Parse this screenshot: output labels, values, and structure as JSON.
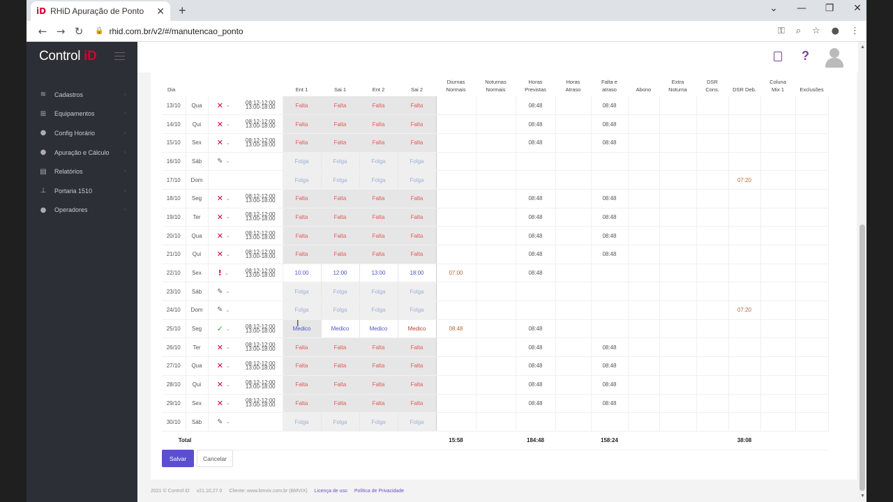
{
  "browser": {
    "tab_title": "RHiD Apuração de Ponto",
    "tab_favicon": "iD",
    "tab_close": "✕",
    "new_tab": "+",
    "url": "rhid.com.br/v2/#/manutencao_ponto",
    "window_controls": [
      "⌄",
      "—",
      "❐",
      "✕"
    ],
    "nav": {
      "back": "←",
      "forward": "→",
      "reload": "↻"
    },
    "address_icons": [
      "⚿",
      "⌕",
      "☆",
      "●",
      "⋮"
    ]
  },
  "sidebar": {
    "brand_text": "Control",
    "brand_id": "iD",
    "items": [
      {
        "label": "Cadastros",
        "icon": "layers-icon",
        "glyph": "≋"
      },
      {
        "label": "Equipamentos",
        "icon": "sitemap-icon",
        "glyph": "⊞"
      },
      {
        "label": "Config Horário",
        "icon": "user-clock-icon",
        "glyph": "●"
      },
      {
        "label": "Apuração e Cálculo",
        "icon": "user-gear-icon",
        "glyph": "●"
      },
      {
        "label": "Relatórios",
        "icon": "file-icon",
        "glyph": "▤"
      },
      {
        "label": "Portaria 1510",
        "icon": "pin-icon",
        "glyph": "⊥"
      },
      {
        "label": "Operadores",
        "icon": "user-circle-icon",
        "glyph": "●"
      }
    ],
    "chevron": "›"
  },
  "topbar": {
    "help": "?"
  },
  "table": {
    "headers": {
      "dia": "Dia",
      "ent1": "Ent 1",
      "sai1": "Sai 1",
      "ent2": "Ent 2",
      "sai2": "Sai 2",
      "diurnas": [
        "Diurnas",
        "Normais"
      ],
      "noturnas": [
        "Noturnas",
        "Normais"
      ],
      "horas_previstas": [
        "Horas",
        "Previstas"
      ],
      "horas_atraso": [
        "Horas",
        "Atraso"
      ],
      "falta_atraso": [
        "Falta e",
        "atraso"
      ],
      "abono": [
        "Abono"
      ],
      "extra_noturna": [
        "Extra",
        "Noturna"
      ],
      "dsr_cons": [
        "DSR",
        "Cons."
      ],
      "dsr_deb": [
        "DSR Deb."
      ],
      "coluna_mix": [
        "Coluna",
        "Mix 1"
      ],
      "exclusoes": [
        "Exclusões"
      ]
    },
    "schedule_text": "08:12-12:00 13:00-18:00",
    "rows": [
      {
        "dia": "13/10",
        "dsem": "Qua",
        "status": "x",
        "horario": true,
        "marks": [
          "Falta",
          "Falta",
          "Falta",
          "Falta"
        ],
        "kind": "falta",
        "diurnas": "",
        "previstas": "08:48",
        "falta": "08:48",
        "dsr_deb": ""
      },
      {
        "dia": "14/10",
        "dsem": "Qui",
        "status": "x",
        "horario": true,
        "marks": [
          "Falta",
          "Falta",
          "Falta",
          "Falta"
        ],
        "kind": "falta",
        "diurnas": "",
        "previstas": "08:48",
        "falta": "08:48",
        "dsr_deb": ""
      },
      {
        "dia": "15/10",
        "dsem": "Sex",
        "status": "x",
        "horario": true,
        "marks": [
          "Falta",
          "Falta",
          "Falta",
          "Falta"
        ],
        "kind": "falta",
        "diurnas": "",
        "previstas": "08:48",
        "falta": "08:48",
        "dsr_deb": ""
      },
      {
        "dia": "16/10",
        "dsem": "Sáb",
        "status": "edit",
        "horario": false,
        "marks": [
          "Folga",
          "Folga",
          "Folga",
          "Folga"
        ],
        "kind": "folga",
        "diurnas": "",
        "previstas": "",
        "falta": "",
        "dsr_deb": ""
      },
      {
        "dia": "17/10",
        "dsem": "Dom",
        "status": "none",
        "horario": false,
        "marks": [
          "Folga",
          "Folga",
          "Folga",
          "Folga"
        ],
        "kind": "folga",
        "diurnas": "",
        "previstas": "",
        "falta": "",
        "dsr_deb": "07:20"
      },
      {
        "dia": "18/10",
        "dsem": "Seg",
        "status": "x",
        "horario": true,
        "marks": [
          "Falta",
          "Falta",
          "Falta",
          "Falta"
        ],
        "kind": "falta",
        "diurnas": "",
        "previstas": "08:48",
        "falta": "08:48",
        "dsr_deb": ""
      },
      {
        "dia": "19/10",
        "dsem": "Ter",
        "status": "x",
        "horario": true,
        "marks": [
          "Falta",
          "Falta",
          "Falta",
          "Falta"
        ],
        "kind": "falta",
        "diurnas": "",
        "previstas": "08:48",
        "falta": "08:48",
        "dsr_deb": ""
      },
      {
        "dia": "20/10",
        "dsem": "Qua",
        "status": "x",
        "horario": true,
        "marks": [
          "Falta",
          "Falta",
          "Falta",
          "Falta"
        ],
        "kind": "falta",
        "diurnas": "",
        "previstas": "08:48",
        "falta": "08:48",
        "dsr_deb": ""
      },
      {
        "dia": "21/10",
        "dsem": "Qui",
        "status": "x",
        "horario": true,
        "marks": [
          "Falta",
          "Falta",
          "Falta",
          "Falta"
        ],
        "kind": "falta",
        "diurnas": "",
        "previstas": "08:48",
        "falta": "08:48",
        "dsr_deb": ""
      },
      {
        "dia": "22/10",
        "dsem": "Sex",
        "status": "exc",
        "horario": true,
        "marks": [
          "10:00",
          "12:00",
          "13:00",
          "18:00"
        ],
        "kind": "normal",
        "diurnas": "07:00",
        "previstas": "08:48",
        "falta": "",
        "dsr_deb": ""
      },
      {
        "dia": "23/10",
        "dsem": "Sáb",
        "status": "edit",
        "horario": false,
        "marks": [
          "Folga",
          "Folga",
          "Folga",
          "Folga"
        ],
        "kind": "folga",
        "diurnas": "",
        "previstas": "",
        "falta": "",
        "dsr_deb": ""
      },
      {
        "dia": "24/10",
        "dsem": "Dom",
        "status": "edit",
        "horario": false,
        "marks": [
          "Folga",
          "Folga",
          "Folga",
          "Folga"
        ],
        "kind": "folga",
        "diurnas": "",
        "previstas": "",
        "falta": "",
        "dsr_deb": "07:20"
      },
      {
        "dia": "25/10",
        "dsem": "Seg",
        "status": "chk",
        "horario": true,
        "marks": [
          "Medico",
          "Medico",
          "Medico",
          "Medico"
        ],
        "kind": "med",
        "diurnas": "08:48",
        "previstas": "08:48",
        "falta": "",
        "dsr_deb": ""
      },
      {
        "dia": "26/10",
        "dsem": "Ter",
        "status": "x",
        "horario": true,
        "marks": [
          "Falta",
          "Falta",
          "Falta",
          "Falta"
        ],
        "kind": "falta",
        "diurnas": "",
        "previstas": "08:48",
        "falta": "08:48",
        "dsr_deb": ""
      },
      {
        "dia": "27/10",
        "dsem": "Qua",
        "status": "x",
        "horario": true,
        "marks": [
          "Falta",
          "Falta",
          "Falta",
          "Falta"
        ],
        "kind": "falta",
        "diurnas": "",
        "previstas": "08:48",
        "falta": "08:48",
        "dsr_deb": ""
      },
      {
        "dia": "28/10",
        "dsem": "Qui",
        "status": "x",
        "horario": true,
        "marks": [
          "Falta",
          "Falta",
          "Falta",
          "Falta"
        ],
        "kind": "falta",
        "diurnas": "",
        "previstas": "08:48",
        "falta": "08:48",
        "dsr_deb": ""
      },
      {
        "dia": "29/10",
        "dsem": "Sex",
        "status": "x",
        "horario": true,
        "marks": [
          "Falta",
          "Falta",
          "Falta",
          "Falta"
        ],
        "kind": "falta",
        "diurnas": "",
        "previstas": "08:48",
        "falta": "08:48",
        "dsr_deb": ""
      },
      {
        "dia": "30/10",
        "dsem": "Sáb",
        "status": "edit",
        "horario": false,
        "marks": [
          "Folga",
          "Folga",
          "Folga",
          "Folga"
        ],
        "kind": "folga",
        "diurnas": "",
        "previstas": "",
        "falta": "",
        "dsr_deb": ""
      }
    ],
    "total": {
      "label": "Total",
      "diurnas": "15:58",
      "previstas": "184:48",
      "falta": "158:24",
      "dsr_deb": "38:08"
    }
  },
  "buttons": {
    "save": "Salvar",
    "cancel": "Cancelar"
  },
  "footer": {
    "copyright": "2021 © Control iD",
    "version": "v21.10.27.0",
    "client": "Cliente: www.bmvix.com.br (BMVIX)",
    "license": "Licença de uso",
    "privacy": "Política de Privacidade"
  },
  "colors": {
    "brand": "#d50032",
    "primary": "#5b4fcf",
    "falta": "#e05a5a"
  }
}
